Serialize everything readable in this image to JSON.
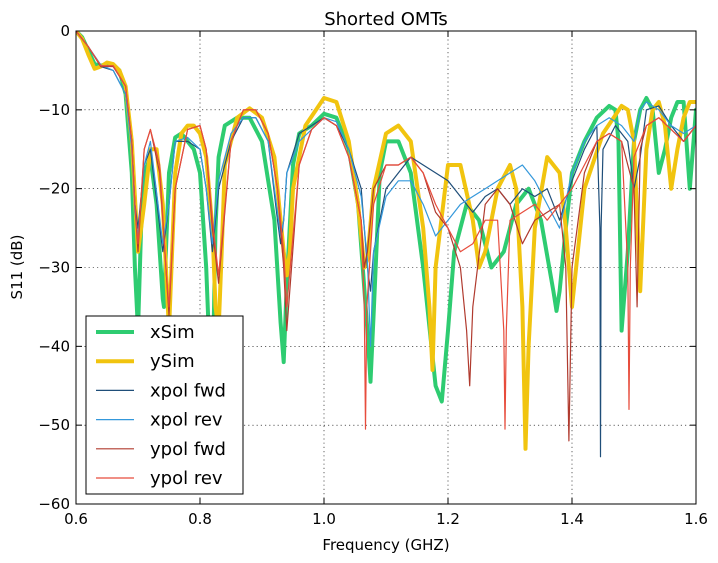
{
  "chart_data": {
    "type": "line",
    "title": "Shorted OMTs",
    "xlabel": "Frequency (GHZ)",
    "ylabel": "S11 (dB)",
    "xlim": [
      0.6,
      1.6
    ],
    "ylim": [
      -60,
      0
    ],
    "xticks": [
      0.6,
      0.8,
      1.0,
      1.2,
      1.4,
      1.6
    ],
    "xtick_labels": [
      "0.6",
      "0.8",
      "1.0",
      "1.2",
      "1.4",
      "1.6"
    ],
    "yticks": [
      0,
      -10,
      -20,
      -30,
      -40,
      -50,
      -60
    ],
    "ytick_labels": [
      "0",
      "−10",
      "−20",
      "−30",
      "−40",
      "−50",
      "−60"
    ],
    "grid": true,
    "legend_position": "lower-left",
    "series": [
      {
        "name": "xSim",
        "color": "#2ecc71",
        "width": 4,
        "x": [
          0.6,
          0.61,
          0.62,
          0.63,
          0.64,
          0.65,
          0.66,
          0.67,
          0.68,
          0.69,
          0.695,
          0.7,
          0.705,
          0.71,
          0.72,
          0.73,
          0.74,
          0.742,
          0.745,
          0.75,
          0.76,
          0.77,
          0.78,
          0.79,
          0.8,
          0.81,
          0.815,
          0.82,
          0.822,
          0.825,
          0.83,
          0.84,
          0.86,
          0.88,
          0.9,
          0.92,
          0.93,
          0.935,
          0.94,
          0.95,
          0.96,
          0.98,
          1.0,
          1.02,
          1.04,
          1.055,
          1.07,
          1.075,
          1.08,
          1.09,
          1.1,
          1.12,
          1.14,
          1.16,
          1.18,
          1.19,
          1.2,
          1.21,
          1.23,
          1.25,
          1.27,
          1.29,
          1.31,
          1.33,
          1.35,
          1.37,
          1.375,
          1.38,
          1.39,
          1.4,
          1.42,
          1.44,
          1.46,
          1.47,
          1.475,
          1.48,
          1.49,
          1.5,
          1.51,
          1.52,
          1.53,
          1.54,
          1.55,
          1.56,
          1.57,
          1.58,
          1.59,
          1.6
        ],
        "y": [
          0,
          -0.8,
          -2.5,
          -4.2,
          -4.4,
          -4.2,
          -4.3,
          -5,
          -8,
          -18,
          -30,
          -38,
          -25,
          -18,
          -16,
          -22,
          -34,
          -35,
          -28,
          -18,
          -13.5,
          -13,
          -14,
          -15,
          -18,
          -30,
          -40,
          -45,
          -38,
          -25,
          -16,
          -12,
          -11,
          -11,
          -14,
          -24,
          -37,
          -42,
          -32,
          -17,
          -13,
          -12,
          -10.5,
          -11,
          -15,
          -22,
          -38,
          -44.5,
          -36,
          -18,
          -14,
          -14,
          -18,
          -30,
          -45,
          -47,
          -38,
          -28,
          -22,
          -24,
          -30,
          -28,
          -22,
          -20,
          -24,
          -33,
          -35.5,
          -33,
          -25,
          -18,
          -14,
          -11,
          -9.5,
          -10,
          -14,
          -38,
          -28,
          -14,
          -10,
          -8.5,
          -10,
          -18,
          -15,
          -11,
          -9,
          -9,
          -20,
          -10
        ]
      },
      {
        "name": "ySim",
        "color": "#f1c40f",
        "width": 4,
        "x": [
          0.6,
          0.61,
          0.62,
          0.63,
          0.64,
          0.65,
          0.66,
          0.67,
          0.68,
          0.69,
          0.7,
          0.71,
          0.72,
          0.73,
          0.74,
          0.745,
          0.75,
          0.755,
          0.76,
          0.77,
          0.78,
          0.79,
          0.8,
          0.81,
          0.82,
          0.825,
          0.83,
          0.835,
          0.84,
          0.86,
          0.88,
          0.9,
          0.92,
          0.935,
          0.94,
          0.945,
          0.95,
          0.97,
          1.0,
          1.02,
          1.04,
          1.055,
          1.065,
          1.07,
          1.08,
          1.1,
          1.12,
          1.14,
          1.16,
          1.17,
          1.175,
          1.18,
          1.2,
          1.22,
          1.24,
          1.25,
          1.26,
          1.28,
          1.3,
          1.31,
          1.32,
          1.325,
          1.33,
          1.34,
          1.36,
          1.38,
          1.39,
          1.4,
          1.42,
          1.45,
          1.48,
          1.49,
          1.5,
          1.51,
          1.52,
          1.53,
          1.54,
          1.55,
          1.56,
          1.57,
          1.58,
          1.59,
          1.6
        ],
        "y": [
          0,
          -1,
          -3,
          -4.8,
          -4.5,
          -4,
          -4.2,
          -5,
          -7,
          -14,
          -28,
          -22,
          -15,
          -15,
          -22,
          -30,
          -38,
          -28,
          -18,
          -13,
          -12,
          -12,
          -13,
          -16,
          -25,
          -35,
          -38,
          -28,
          -17,
          -11,
          -9.8,
          -11,
          -16,
          -28,
          -31,
          -28,
          -20,
          -12,
          -8.5,
          -9,
          -14,
          -22,
          -30,
          -29,
          -20,
          -13,
          -12,
          -14,
          -25,
          -35,
          -43,
          -30,
          -17,
          -17,
          -24,
          -30,
          -28,
          -20,
          -17,
          -20,
          -35,
          -53,
          -40,
          -25,
          -16,
          -18,
          -25,
          -35,
          -20,
          -13,
          -9.5,
          -10,
          -14,
          -33,
          -15,
          -10,
          -9,
          -12,
          -20,
          -15,
          -11,
          -9,
          -9
        ]
      },
      {
        "name": "xpol fwd",
        "color": "#1f4e79",
        "width": 1.2,
        "x": [
          0.6,
          0.62,
          0.64,
          0.66,
          0.68,
          0.69,
          0.695,
          0.7,
          0.71,
          0.72,
          0.74,
          0.75,
          0.76,
          0.78,
          0.8,
          0.81,
          0.82,
          0.83,
          0.85,
          0.87,
          0.89,
          0.91,
          0.925,
          0.93,
          0.935,
          0.94,
          0.96,
          0.98,
          1.0,
          1.02,
          1.04,
          1.06,
          1.07,
          1.075,
          1.08,
          1.1,
          1.12,
          1.14,
          1.16,
          1.18,
          1.2,
          1.22,
          1.24,
          1.26,
          1.28,
          1.3,
          1.32,
          1.34,
          1.36,
          1.38,
          1.4,
          1.42,
          1.44,
          1.445,
          1.446,
          1.447,
          1.45,
          1.47,
          1.49,
          1.5,
          1.51,
          1.52,
          1.54,
          1.56,
          1.58,
          1.6
        ],
        "y": [
          0,
          -2,
          -4.5,
          -5,
          -8,
          -14,
          -22,
          -25,
          -17,
          -15,
          -28,
          -22,
          -14,
          -14,
          -15,
          -20,
          -28,
          -20,
          -14,
          -11,
          -11,
          -14,
          -24,
          -27,
          -24,
          -18,
          -13,
          -12,
          -11,
          -12,
          -15,
          -20,
          -30,
          -33,
          -28,
          -20,
          -18,
          -16,
          -17,
          -18,
          -19,
          -21,
          -23,
          -21,
          -20,
          -22,
          -20,
          -21,
          -20,
          -24,
          -19,
          -15,
          -12,
          -25,
          -54,
          -25,
          -15,
          -12,
          -14,
          -20,
          -16,
          -10,
          -9.5,
          -12,
          -14,
          -12
        ]
      },
      {
        "name": "xpol rev",
        "color": "#3498db",
        "width": 1.2,
        "x": [
          0.6,
          0.62,
          0.64,
          0.66,
          0.68,
          0.69,
          0.695,
          0.7,
          0.71,
          0.72,
          0.74,
          0.75,
          0.76,
          0.78,
          0.8,
          0.81,
          0.82,
          0.83,
          0.85,
          0.87,
          0.89,
          0.91,
          0.925,
          0.93,
          0.935,
          0.94,
          0.96,
          0.98,
          1.0,
          1.02,
          1.04,
          1.06,
          1.07,
          1.075,
          1.08,
          1.1,
          1.12,
          1.14,
          1.16,
          1.18,
          1.2,
          1.22,
          1.24,
          1.26,
          1.28,
          1.3,
          1.32,
          1.34,
          1.36,
          1.38,
          1.4,
          1.42,
          1.44,
          1.46,
          1.48,
          1.5,
          1.51,
          1.52,
          1.54,
          1.56,
          1.58,
          1.6
        ],
        "y": [
          0,
          -2,
          -4.3,
          -5,
          -8,
          -15,
          -23,
          -26,
          -17,
          -14,
          -27,
          -22,
          -14,
          -13.5,
          -15,
          -20,
          -27,
          -19,
          -13,
          -11,
          -11,
          -14,
          -23,
          -26,
          -24,
          -18,
          -14,
          -12.5,
          -11,
          -11.5,
          -15,
          -21,
          -29,
          -40,
          -28,
          -21,
          -19,
          -19,
          -22,
          -26,
          -24,
          -22,
          -21,
          -20,
          -19,
          -18,
          -17,
          -19,
          -22,
          -25,
          -18,
          -14,
          -12,
          -11,
          -12,
          -14,
          -10,
          -9,
          -10,
          -12,
          -13,
          -12
        ]
      },
      {
        "name": "ypol fwd",
        "color": "#b03a2e",
        "width": 1.2,
        "x": [
          0.6,
          0.62,
          0.64,
          0.66,
          0.68,
          0.69,
          0.695,
          0.7,
          0.71,
          0.72,
          0.735,
          0.745,
          0.75,
          0.76,
          0.78,
          0.8,
          0.81,
          0.82,
          0.83,
          0.85,
          0.87,
          0.89,
          0.91,
          0.925,
          0.935,
          0.94,
          0.96,
          0.98,
          1.0,
          1.02,
          1.04,
          1.06,
          1.065,
          1.07,
          1.08,
          1.1,
          1.12,
          1.14,
          1.16,
          1.18,
          1.2,
          1.22,
          1.23,
          1.235,
          1.24,
          1.26,
          1.28,
          1.3,
          1.32,
          1.34,
          1.36,
          1.38,
          1.39,
          1.395,
          1.4,
          1.42,
          1.44,
          1.46,
          1.48,
          1.5,
          1.505,
          1.51,
          1.52,
          1.54,
          1.56,
          1.58,
          1.6
        ],
        "y": [
          0,
          -2,
          -4.5,
          -4.5,
          -7,
          -14,
          -22,
          -28,
          -15,
          -12.5,
          -18,
          -30,
          -36,
          -20,
          -12.5,
          -12,
          -15,
          -25,
          -32,
          -14,
          -10,
          -10,
          -13,
          -20,
          -30,
          -38,
          -17,
          -12.5,
          -11,
          -12,
          -16,
          -24,
          -30,
          -28,
          -20,
          -17,
          -17,
          -16,
          -18,
          -23,
          -25,
          -30,
          -38,
          -45,
          -35,
          -22,
          -20,
          -22,
          -27,
          -24,
          -23,
          -22,
          -30,
          -52,
          -30,
          -18,
          -14,
          -13,
          -14,
          -20,
          -35,
          -15,
          -12,
          -11,
          -12.5,
          -14,
          -12
        ]
      },
      {
        "name": "ypol rev",
        "color": "#e74c3c",
        "width": 1.2,
        "x": [
          0.6,
          0.62,
          0.64,
          0.66,
          0.68,
          0.69,
          0.695,
          0.7,
          0.71,
          0.72,
          0.735,
          0.745,
          0.75,
          0.76,
          0.78,
          0.8,
          0.81,
          0.82,
          0.83,
          0.85,
          0.87,
          0.89,
          0.91,
          0.925,
          0.935,
          0.94,
          0.96,
          0.98,
          1.0,
          1.02,
          1.04,
          1.06,
          1.065,
          1.067,
          1.069,
          1.075,
          1.08,
          1.1,
          1.12,
          1.14,
          1.16,
          1.18,
          1.2,
          1.22,
          1.24,
          1.26,
          1.28,
          1.29,
          1.292,
          1.294,
          1.3,
          1.32,
          1.34,
          1.36,
          1.38,
          1.4,
          1.42,
          1.44,
          1.46,
          1.48,
          1.49,
          1.492,
          1.494,
          1.5,
          1.52,
          1.54,
          1.56,
          1.58,
          1.6
        ],
        "y": [
          0,
          -2,
          -4.4,
          -4.4,
          -7,
          -14,
          -22,
          -27,
          -15,
          -12.5,
          -17,
          -30,
          -35,
          -20,
          -12.5,
          -12,
          -15,
          -24,
          -31,
          -14,
          -10,
          -10,
          -13,
          -20,
          -28,
          -35,
          -17,
          -12.5,
          -11,
          -12,
          -16,
          -24,
          -35,
          -50.5,
          -35,
          -28,
          -22,
          -17,
          -17,
          -16,
          -18,
          -22,
          -25,
          -28,
          -27,
          -24,
          -24,
          -38,
          -50.5,
          -38,
          -24,
          -23,
          -22,
          -24,
          -22,
          -20,
          -17,
          -14,
          -13,
          -14,
          -30,
          -48,
          -30,
          -16,
          -12,
          -11,
          -12.5,
          -14,
          -12
        ]
      }
    ]
  }
}
